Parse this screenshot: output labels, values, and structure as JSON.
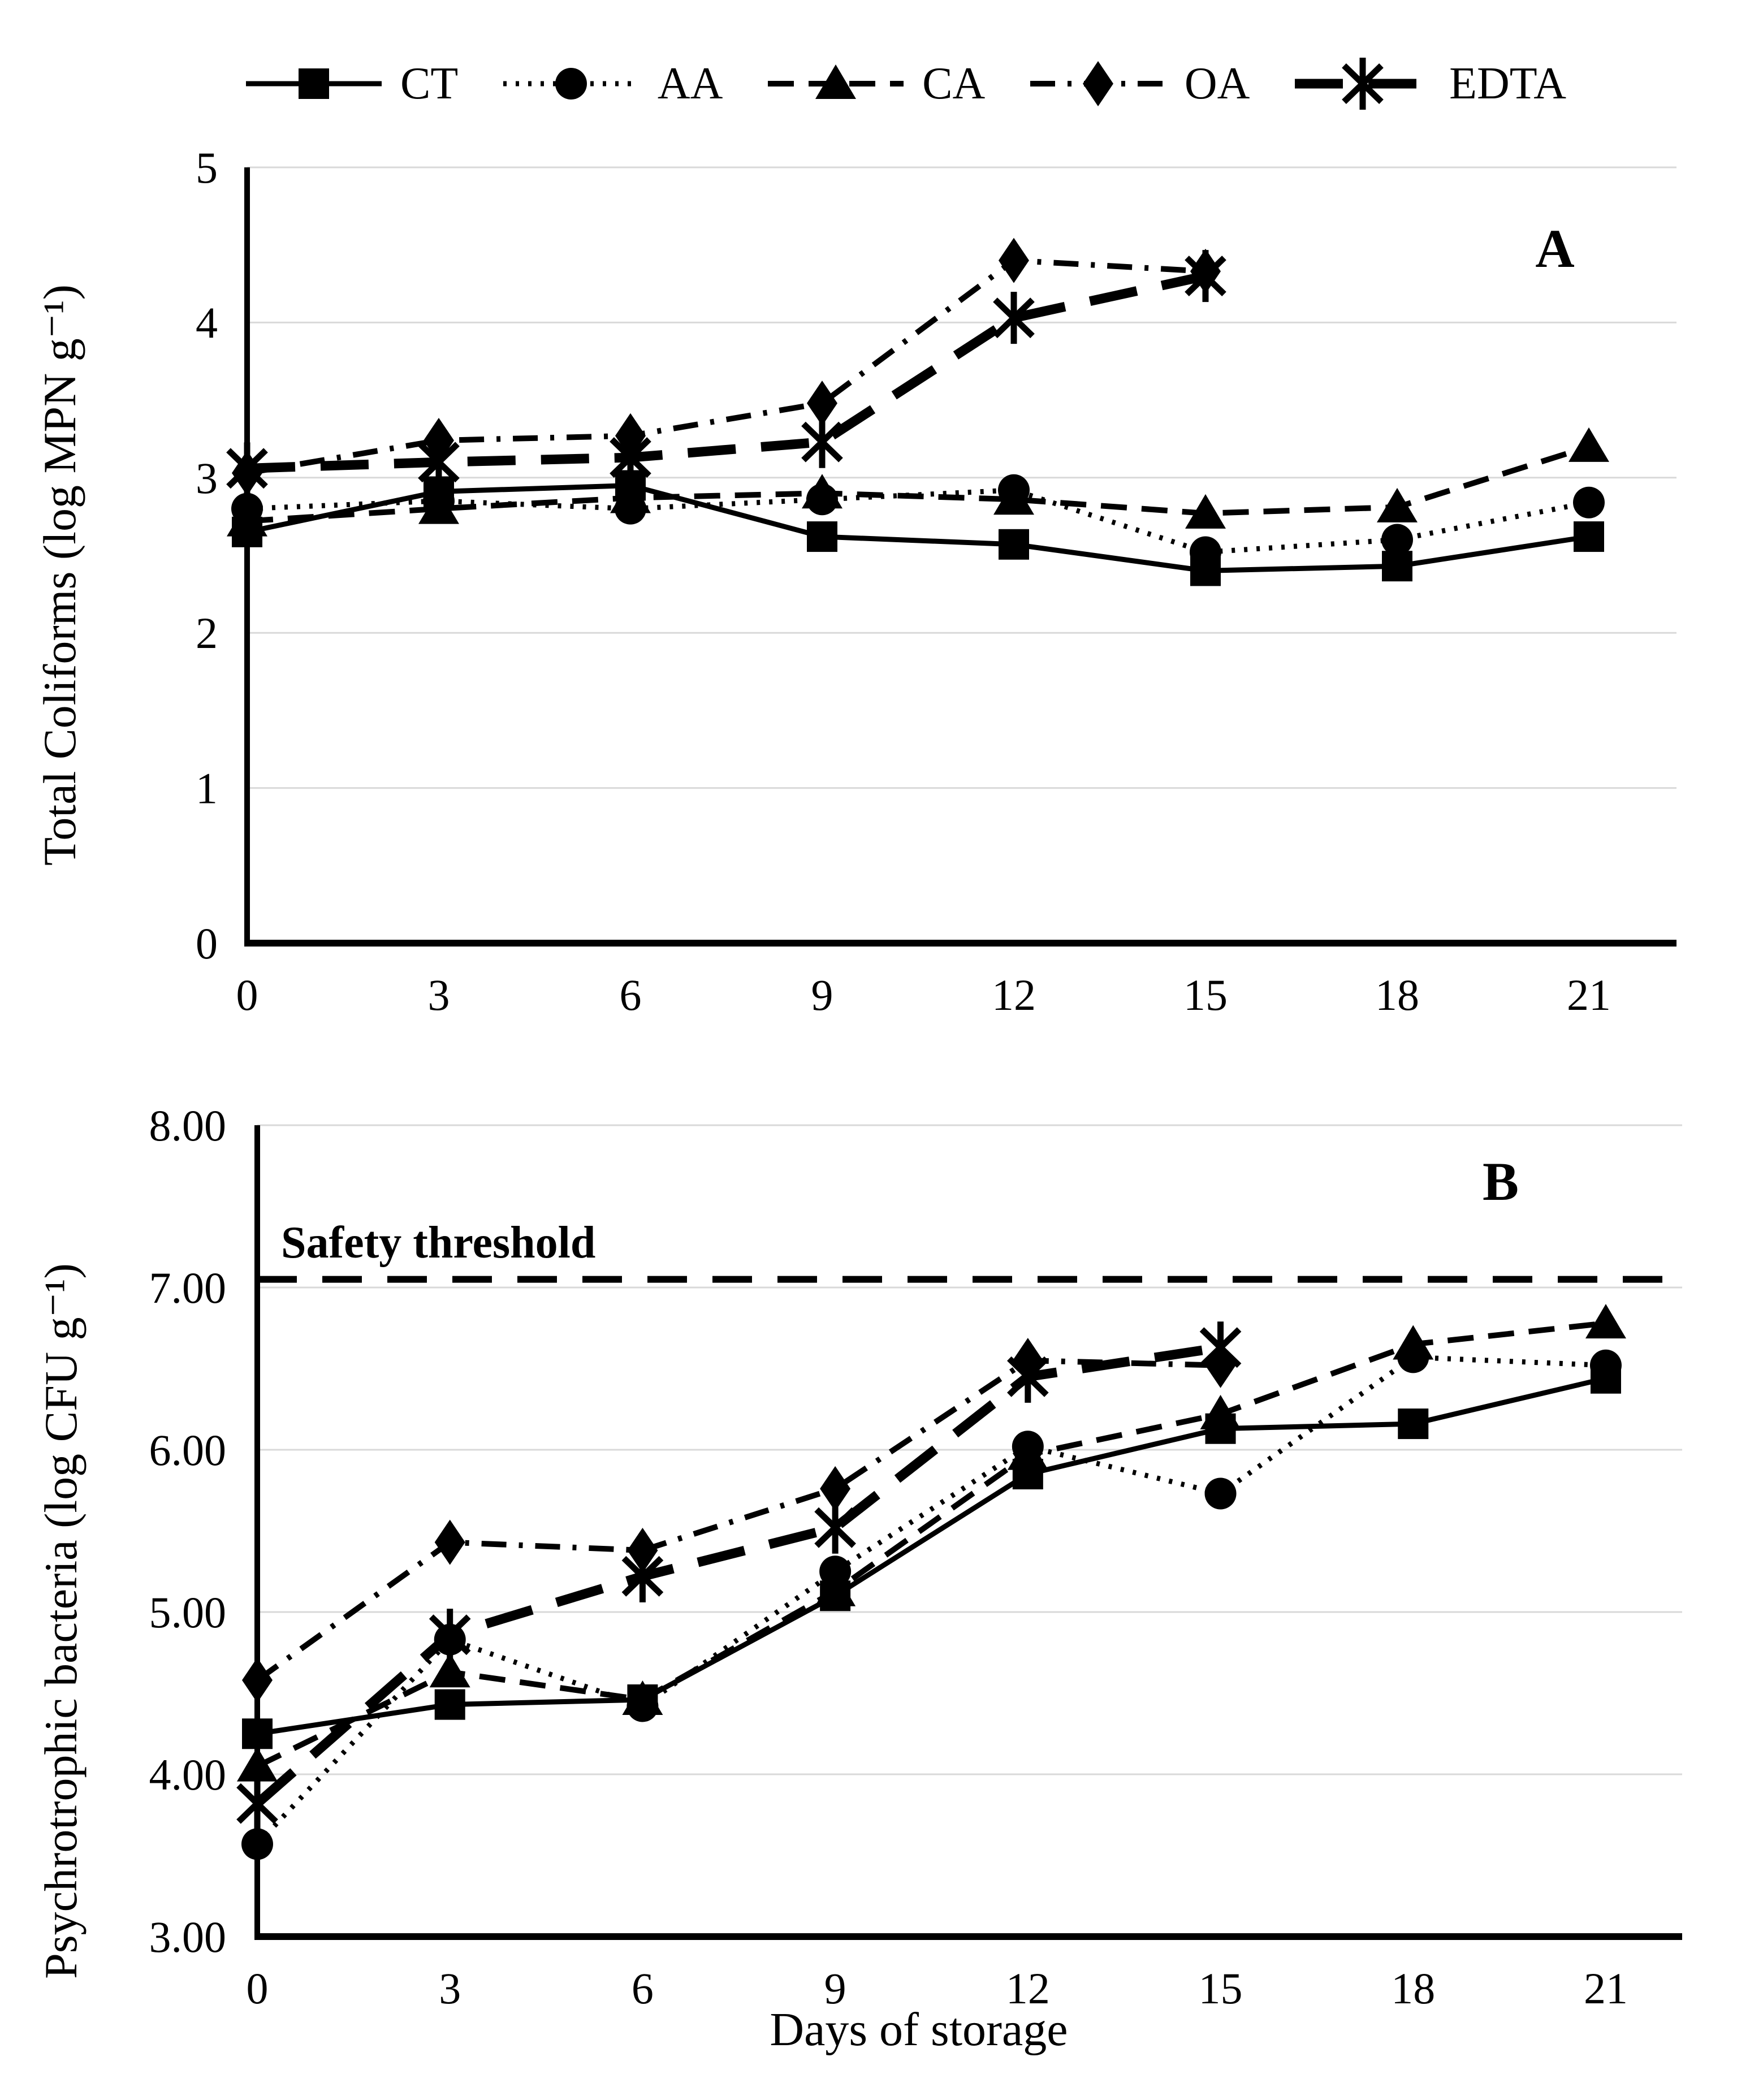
{
  "figure": {
    "legend": [
      {
        "label": "CT",
        "marker": "square",
        "line": "solid"
      },
      {
        "label": "AA",
        "marker": "circle",
        "line": "dotted"
      },
      {
        "label": "CA",
        "marker": "triangle",
        "line": "dashed"
      },
      {
        "label": "OA",
        "marker": "diamond",
        "line": "dashdot"
      },
      {
        "label": "EDTA",
        "marker": "asterisk",
        "line": "longdash"
      }
    ],
    "colors": {
      "series": "#000000",
      "gridline": "#d9d9d9",
      "background": "#ffffff"
    }
  },
  "chart_data": [
    {
      "id": "A",
      "type": "line",
      "panel_label": "A",
      "ylabel": "Total Coliforms (log MPN g⁻¹)",
      "x": [
        0,
        3,
        6,
        9,
        12,
        15,
        18,
        21
      ],
      "xticklabels": [
        "0",
        "3",
        "6",
        "9",
        "12",
        "15",
        "18",
        "21"
      ],
      "ylim": [
        0,
        5
      ],
      "yticks": [
        0,
        1,
        2,
        3,
        4,
        5
      ],
      "yticklabels": [
        "0",
        "1",
        "2",
        "3",
        "4",
        "5"
      ],
      "grid": true,
      "legend_position": "top",
      "series": [
        {
          "name": "CT",
          "marker": "square",
          "line": "solid",
          "values": [
            2.65,
            2.91,
            2.95,
            2.62,
            2.57,
            2.4,
            2.43,
            2.62
          ]
        },
        {
          "name": "AA",
          "marker": "circle",
          "line": "dotted",
          "values": [
            2.8,
            2.85,
            2.8,
            2.86,
            2.92,
            2.52,
            2.6,
            2.84
          ]
        },
        {
          "name": "CA",
          "marker": "triangle",
          "line": "dashed",
          "values": [
            2.72,
            2.8,
            2.87,
            2.9,
            2.86,
            2.77,
            2.81,
            3.2
          ]
        },
        {
          "name": "OA",
          "marker": "diamond",
          "line": "dashdot",
          "values": [
            3.03,
            3.24,
            3.27,
            3.48,
            4.4,
            4.33,
            null,
            null
          ]
        },
        {
          "name": "EDTA",
          "marker": "asterisk",
          "line": "longdash",
          "values": [
            3.06,
            3.1,
            3.13,
            3.23,
            4.03,
            4.3,
            null,
            null
          ]
        }
      ]
    },
    {
      "id": "B",
      "type": "line",
      "panel_label": "B",
      "ylabel": "Psychrotrophic bacteria (log CFU g⁻¹)",
      "xlabel": "Days of storage",
      "x": [
        0,
        3,
        6,
        9,
        12,
        15,
        18,
        21
      ],
      "xticklabels": [
        "0",
        "3",
        "6",
        "9",
        "12",
        "15",
        "18",
        "21"
      ],
      "ylim": [
        3,
        8
      ],
      "yticks": [
        3,
        4,
        5,
        6,
        7,
        8
      ],
      "yticklabels": [
        "3.00",
        "4.00",
        "5.00",
        "6.00",
        "7.00",
        "8.00"
      ],
      "grid": true,
      "threshold": {
        "value": 7.05,
        "label": "Safety threshold"
      },
      "series": [
        {
          "name": "CT",
          "marker": "square",
          "line": "solid",
          "values": [
            4.25,
            4.43,
            4.46,
            5.1,
            5.85,
            6.13,
            6.16,
            6.44
          ]
        },
        {
          "name": "AA",
          "marker": "circle",
          "line": "dotted",
          "values": [
            3.57,
            4.83,
            4.42,
            5.25,
            6.02,
            5.73,
            6.57,
            6.52
          ]
        },
        {
          "name": "CA",
          "marker": "triangle",
          "line": "dashed",
          "values": [
            4.05,
            4.63,
            4.46,
            5.13,
            5.97,
            6.22,
            6.65,
            6.78
          ]
        },
        {
          "name": "OA",
          "marker": "diamond",
          "line": "dashdot",
          "values": [
            4.58,
            5.43,
            5.38,
            5.76,
            6.55,
            6.52,
            null,
            null
          ]
        },
        {
          "name": "EDTA",
          "marker": "asterisk",
          "line": "longdash",
          "values": [
            3.82,
            4.86,
            5.22,
            5.52,
            6.45,
            6.63,
            null,
            null
          ]
        }
      ]
    }
  ]
}
